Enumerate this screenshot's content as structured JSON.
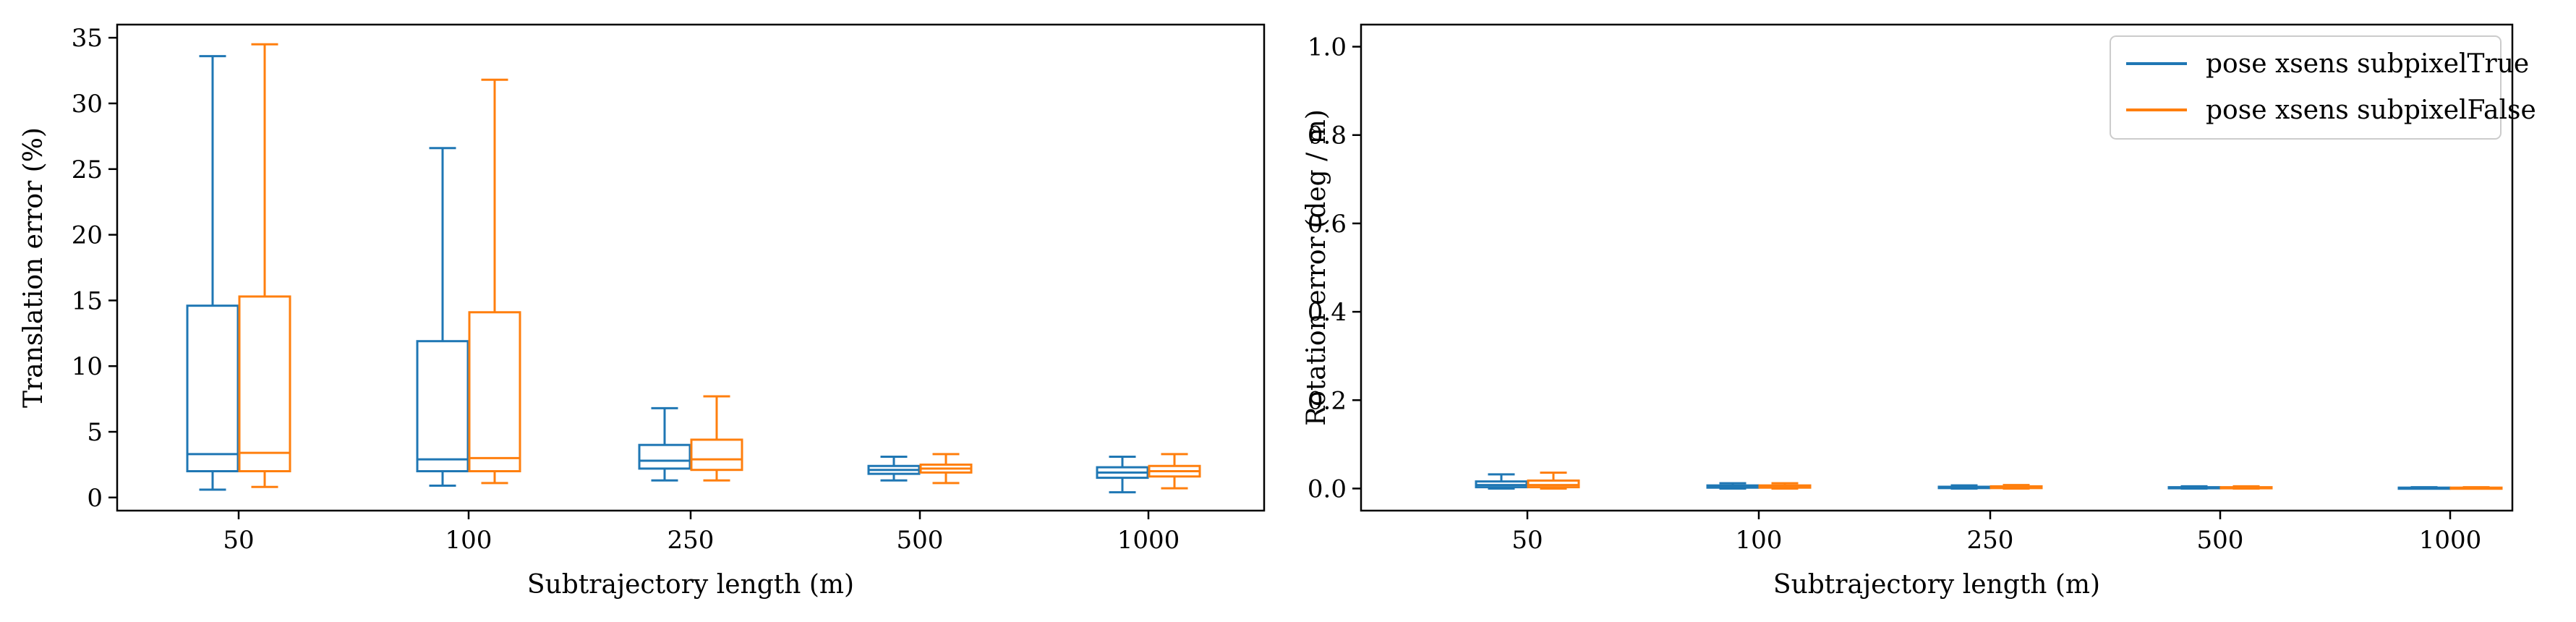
{
  "colors": {
    "subpixel_true": "#1f77b4",
    "subpixel_false": "#ff7f0e"
  },
  "chart_data": [
    {
      "type": "box",
      "xlabel": "Subtrajectory length (m)",
      "ylabel": "Translation error (%)",
      "categories": [
        "50",
        "100",
        "250",
        "500",
        "1000"
      ],
      "ylim": [
        -1.0,
        36.0
      ],
      "yticks": [
        0,
        5,
        10,
        15,
        20,
        25,
        30,
        35
      ],
      "grid": false,
      "series": [
        {
          "name": "pose xsens subpixelTrue",
          "boxes": [
            {
              "whislo": 0.6,
              "q1": 2.0,
              "med": 3.3,
              "q3": 14.6,
              "whishi": 33.6
            },
            {
              "whislo": 0.9,
              "q1": 2.0,
              "med": 2.9,
              "q3": 11.9,
              "whishi": 26.6
            },
            {
              "whislo": 1.3,
              "q1": 2.2,
              "med": 2.8,
              "q3": 4.0,
              "whishi": 6.8
            },
            {
              "whislo": 1.3,
              "q1": 1.8,
              "med": 2.1,
              "q3": 2.4,
              "whishi": 3.1
            },
            {
              "whislo": 0.4,
              "q1": 1.5,
              "med": 1.9,
              "q3": 2.3,
              "whishi": 3.1
            }
          ]
        },
        {
          "name": "pose xsens subpixelFalse",
          "boxes": [
            {
              "whislo": 0.8,
              "q1": 2.0,
              "med": 3.4,
              "q3": 15.3,
              "whishi": 34.5
            },
            {
              "whislo": 1.1,
              "q1": 2.0,
              "med": 3.0,
              "q3": 14.1,
              "whishi": 31.8
            },
            {
              "whislo": 1.3,
              "q1": 2.1,
              "med": 2.9,
              "q3": 4.4,
              "whishi": 7.7
            },
            {
              "whislo": 1.1,
              "q1": 1.9,
              "med": 2.2,
              "q3": 2.5,
              "whishi": 3.3
            },
            {
              "whislo": 0.7,
              "q1": 1.6,
              "med": 2.0,
              "q3": 2.4,
              "whishi": 3.3
            }
          ]
        }
      ]
    },
    {
      "type": "box",
      "xlabel": "Subtrajectory length (m)",
      "ylabel": "Rotation error (deg / m)",
      "categories": [
        "50",
        "100",
        "250",
        "500",
        "1000"
      ],
      "ylim": [
        -0.05,
        1.05
      ],
      "yticks": [
        0.0,
        0.2,
        0.4,
        0.6,
        0.8,
        1.0
      ],
      "ytick_labels": [
        "0.0",
        "0.2",
        "0.4",
        "0.6",
        "0.8",
        "1.0"
      ],
      "grid": false,
      "legend": "top-right",
      "series": [
        {
          "name": "pose xsens subpixelTrue",
          "boxes": [
            {
              "whislo": 0.0,
              "q1": 0.003,
              "med": 0.008,
              "q3": 0.016,
              "whishi": 0.032
            },
            {
              "whislo": 0.0,
              "q1": 0.002,
              "med": 0.004,
              "q3": 0.007,
              "whishi": 0.012
            },
            {
              "whislo": 0.0,
              "q1": 0.001,
              "med": 0.003,
              "q3": 0.004,
              "whishi": 0.007
            },
            {
              "whislo": 0.0,
              "q1": 0.001,
              "med": 0.002,
              "q3": 0.003,
              "whishi": 0.005
            },
            {
              "whislo": 0.0,
              "q1": 0.001,
              "med": 0.001,
              "q3": 0.002,
              "whishi": 0.003
            }
          ]
        },
        {
          "name": "pose xsens subpixelFalse",
          "boxes": [
            {
              "whislo": 0.0,
              "q1": 0.003,
              "med": 0.008,
              "q3": 0.018,
              "whishi": 0.036
            },
            {
              "whislo": 0.0,
              "q1": 0.002,
              "med": 0.004,
              "q3": 0.007,
              "whishi": 0.012
            },
            {
              "whislo": 0.0,
              "q1": 0.001,
              "med": 0.003,
              "q3": 0.005,
              "whishi": 0.008
            },
            {
              "whislo": 0.0,
              "q1": 0.001,
              "med": 0.002,
              "q3": 0.003,
              "whishi": 0.005
            },
            {
              "whislo": 0.0,
              "q1": 0.001,
              "med": 0.001,
              "q3": 0.002,
              "whishi": 0.003
            }
          ]
        }
      ]
    }
  ]
}
